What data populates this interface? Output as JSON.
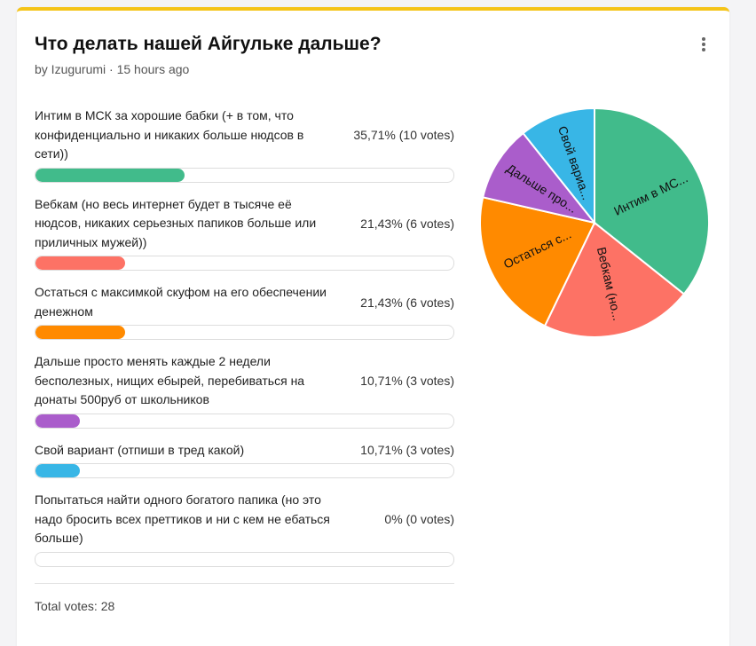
{
  "poll": {
    "title": "Что делать нашей Айгульке дальше?",
    "meta": "by Izugurumi · 15 hours ago",
    "total": "Total votes: 28",
    "menu_icon": "kebab-menu-icon"
  },
  "options": [
    {
      "label": "Интим в МСК за хорошие бабки (+ в том, что конфиденциально и никаких больше нюдсов в сети))",
      "result": "35,71% (10 votes)",
      "percent": 35.71,
      "votes": 10,
      "color": "#41bb8b",
      "pie_label": "Интим в МС..."
    },
    {
      "label": "Вебкам (но весь интернет будет в тысяче её нюдсов, никаких серьезных папиков больше или приличных мужей))",
      "result": "21,43% (6 votes)",
      "percent": 21.43,
      "votes": 6,
      "color": "#fd7265",
      "pie_label": "Вебкам (но..."
    },
    {
      "label": "Остаться с максимкой скуфом на его обеспечении денежном",
      "result": "21,43% (6 votes)",
      "percent": 21.43,
      "votes": 6,
      "color": "#ff8a00",
      "pie_label": "Остаться с..."
    },
    {
      "label": "Дальше просто менять каждые 2 недели бесполезных, нищих ебырей, перебиваться на донаты 500руб от школьников",
      "result": "10,71% (3 votes)",
      "percent": 10.71,
      "votes": 3,
      "color": "#aa5dcb",
      "pie_label": "Дальше про..."
    },
    {
      "label": "Свой вариант (отпиши в тред какой)",
      "result": "10,71% (3 votes)",
      "percent": 10.71,
      "votes": 3,
      "color": "#38b6e6",
      "pie_label": "Свой вариа..."
    },
    {
      "label": "Попытаться найти одного богатого папика (но это надо бросить всех преттиков и ни с кем не ебаться больше)",
      "result": "0% (0 votes)",
      "percent": 0,
      "votes": 0,
      "color": "#cccccc",
      "pie_label": ""
    }
  ],
  "chart_data": {
    "type": "pie",
    "categories": [
      "Интим в МС...",
      "Вебкам (но...",
      "Остаться с...",
      "Дальше про...",
      "Свой вариа..."
    ],
    "values": [
      10,
      6,
      6,
      3,
      3
    ],
    "colors": [
      "#41bb8b",
      "#fd7265",
      "#ff8a00",
      "#aa5dcb",
      "#38b6e6"
    ]
  }
}
